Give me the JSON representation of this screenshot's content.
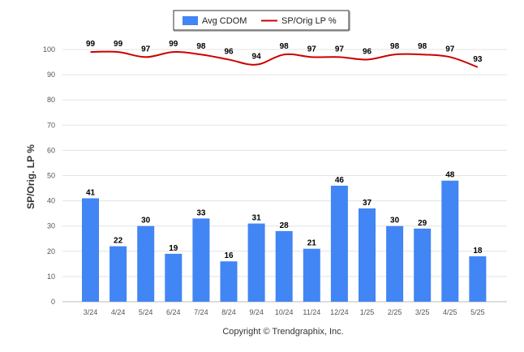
{
  "chart_data": {
    "type": "bar+line",
    "categories": [
      "3/24",
      "4/24",
      "5/24",
      "6/24",
      "7/24",
      "8/24",
      "9/24",
      "10/24",
      "11/24",
      "12/24",
      "1/25",
      "2/25",
      "3/25",
      "4/25",
      "5/25"
    ],
    "series": [
      {
        "name": "Avg CDOM",
        "type": "bar",
        "color": "#4285f4",
        "values": [
          41,
          22,
          30,
          19,
          33,
          16,
          31,
          28,
          21,
          46,
          37,
          30,
          29,
          48,
          18
        ]
      },
      {
        "name": "SP/Orig LP %",
        "type": "line",
        "color": "#cc0000",
        "values": [
          99,
          99,
          97,
          99,
          98,
          96,
          94,
          98,
          97,
          97,
          96,
          98,
          98,
          97,
          93
        ]
      }
    ],
    "ylabel": "SP/Orig. LP %",
    "ylim": [
      0,
      100
    ],
    "yticks": [
      0,
      10,
      20,
      30,
      40,
      50,
      60,
      70,
      80,
      90,
      100
    ],
    "grid": true,
    "legend_position": "top-center"
  },
  "footer": {
    "copyright": "Copyright © Trendgraphix, Inc."
  }
}
